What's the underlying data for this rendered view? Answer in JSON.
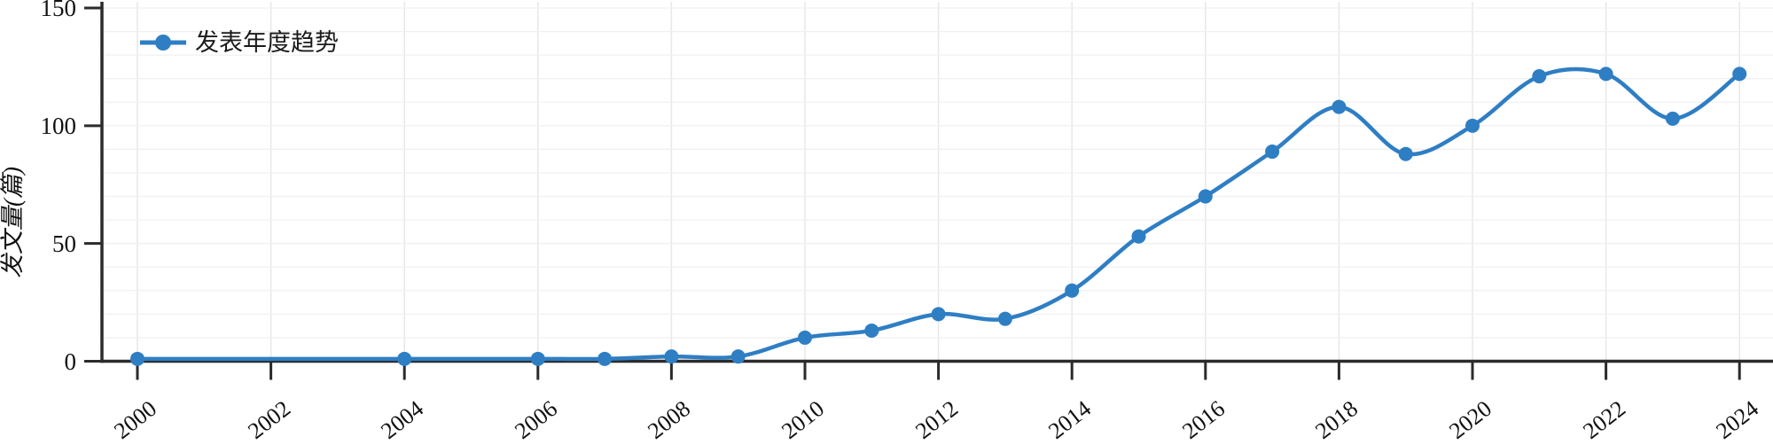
{
  "colors": {
    "line": "#2E7EC4",
    "marker": "#2E7EC4",
    "axis": "#2B2B2B",
    "grid_vertical": "#E7E7E7",
    "grid_horizontal": "#F0F0F0",
    "text": "#111111",
    "background": "#FFFFFF"
  },
  "legend": {
    "label": "发表年度趋势",
    "position": "top-left",
    "marker": "circle-on-line"
  },
  "chart_data": {
    "type": "line",
    "title": "",
    "xlabel": "",
    "ylabel": "发文量(篇)",
    "smooth": true,
    "marker": "circle",
    "x": [
      2000,
      2004,
      2006,
      2007,
      2008,
      2009,
      2010,
      2011,
      2012,
      2013,
      2014,
      2015,
      2016,
      2017,
      2018,
      2019,
      2020,
      2021,
      2022,
      2023,
      2024
    ],
    "series": [
      {
        "name": "发表年度趋势",
        "values": [
          1,
          1,
          1,
          1,
          2,
          2,
          10,
          13,
          20,
          18,
          30,
          53,
          70,
          89,
          108,
          88,
          100,
          121,
          122,
          103,
          122
        ]
      }
    ],
    "x_ticks": [
      2000,
      2002,
      2004,
      2006,
      2008,
      2010,
      2012,
      2014,
      2016,
      2018,
      2020,
      2022,
      2024
    ],
    "y_ticks": [
      0,
      50,
      100,
      150
    ],
    "ylim": [
      0,
      150
    ],
    "xlim": [
      1999.5,
      2024.5
    ],
    "grid": {
      "horizontal_interval": 10,
      "vertical_on_even_years": true
    },
    "legend_position": "top-left"
  }
}
